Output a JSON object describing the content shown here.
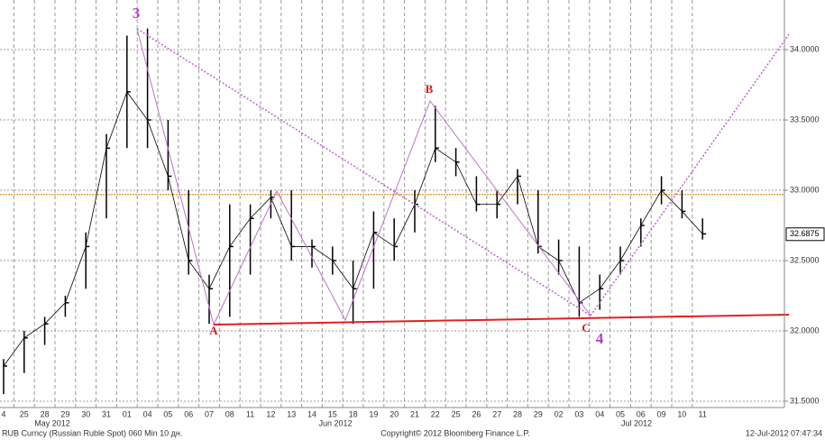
{
  "chart_data": {
    "type": "ohlc",
    "title": "RUB Curncy (Russian Ruble Spot) 060 Min 10 дн.",
    "copyright": "Copyright© 2012 Bloomberg Finance L.P.",
    "timestamp": "12-Jul-2012 07:47:34",
    "categories": [
      "4",
      "25",
      "28",
      "29",
      "30",
      "31",
      "01",
      "04",
      "05",
      "06",
      "07",
      "08",
      "11",
      "12",
      "13",
      "14",
      "15",
      "18",
      "19",
      "20",
      "21",
      "22",
      "25",
      "26",
      "27",
      "28",
      "29",
      "02",
      "03",
      "04",
      "05",
      "06",
      "09",
      "10",
      "11"
    ],
    "month_labels": [
      "May 2012",
      "Jun 2012",
      "Jul 2012"
    ],
    "series": [
      {
        "name": "high",
        "color": "#000000",
        "values": [
          31.8,
          32.0,
          32.1,
          32.25,
          32.7,
          33.4,
          34.1,
          34.15,
          33.5,
          33.0,
          32.4,
          32.9,
          32.9,
          33.0,
          33.0,
          32.65,
          32.6,
          32.5,
          32.85,
          32.8,
          33.0,
          33.6,
          33.3,
          33.1,
          33.0,
          33.15,
          33.0,
          32.65,
          32.6,
          32.4,
          32.6,
          32.8,
          33.1,
          33.0,
          32.8
        ]
      },
      {
        "name": "low",
        "color": "#000000",
        "values": [
          31.55,
          31.7,
          31.9,
          32.1,
          32.3,
          32.8,
          33.3,
          33.3,
          33.0,
          32.4,
          32.05,
          32.1,
          32.4,
          32.8,
          32.5,
          32.45,
          32.4,
          32.05,
          32.3,
          32.5,
          32.7,
          33.2,
          33.1,
          32.85,
          32.8,
          32.9,
          32.55,
          32.4,
          32.1,
          32.15,
          32.4,
          32.6,
          32.9,
          32.8,
          32.65
        ]
      },
      {
        "name": "close",
        "color": "#000000",
        "values": [
          31.75,
          31.95,
          32.05,
          32.2,
          32.6,
          33.3,
          33.7,
          33.5,
          33.1,
          32.5,
          32.3,
          32.6,
          32.8,
          32.95,
          32.6,
          32.6,
          32.5,
          32.3,
          32.7,
          32.6,
          32.9,
          33.3,
          33.2,
          32.9,
          32.9,
          33.1,
          32.6,
          32.5,
          32.2,
          32.3,
          32.5,
          32.75,
          33.0,
          32.85,
          32.69
        ]
      }
    ],
    "ylim": [
      31.455,
      34.353
    ],
    "yticks": [
      {
        "value": 31.5,
        "label": "31.5000"
      },
      {
        "value": 32,
        "label": "32.0000"
      },
      {
        "value": 32.5,
        "label": "32.5000"
      },
      {
        "value": 33,
        "label": "33.0000"
      },
      {
        "value": 33.5,
        "label": "33.5000"
      },
      {
        "value": 34,
        "label": "34.0000"
      }
    ],
    "last_price": 32.6875,
    "reference_line": {
      "value": 32.97,
      "color": "#e8a040"
    },
    "grid": true,
    "wave_labels": [
      "3",
      "A",
      "B",
      "C",
      "4"
    ]
  }
}
